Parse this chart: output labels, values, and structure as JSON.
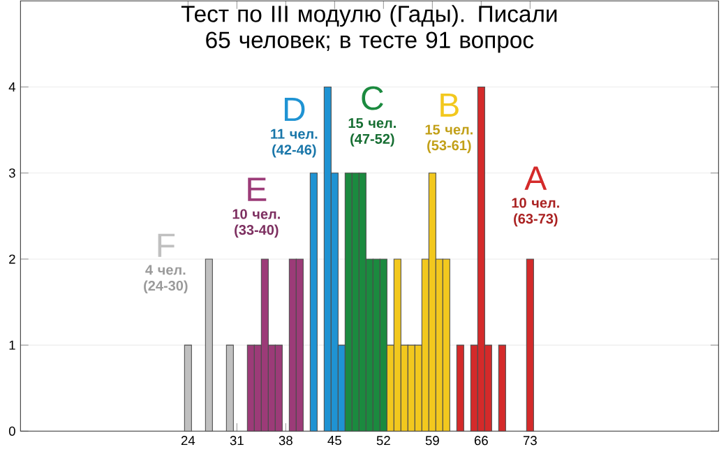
{
  "chart_data": {
    "type": "bar",
    "title": "Тест по III модулю (Гады). Писали 65 человек; в тесте 91 вопрос",
    "series": [
      {
        "name": "F",
        "color": "#c0c0c0",
        "x": [
          24,
          27,
          30
        ],
        "values": [
          1,
          2,
          1
        ]
      },
      {
        "name": "E",
        "color": "#9c3b78",
        "x": [
          33,
          34,
          35,
          36,
          37,
          39,
          40
        ],
        "values": [
          1,
          1,
          2,
          1,
          1,
          2,
          2
        ]
      },
      {
        "name": "D",
        "color": "#1f93d3",
        "x": [
          42,
          44,
          45,
          46
        ],
        "values": [
          3,
          4,
          3,
          1
        ]
      },
      {
        "name": "C",
        "color": "#1b8a3f",
        "x": [
          47,
          48,
          49,
          50,
          51,
          52
        ],
        "values": [
          3,
          3,
          3,
          2,
          2,
          2
        ]
      },
      {
        "name": "B",
        "color": "#f2c81e",
        "x": [
          53,
          54,
          55,
          56,
          57,
          58,
          59,
          60,
          61
        ],
        "values": [
          1,
          2,
          1,
          1,
          1,
          2,
          3,
          2,
          2
        ]
      },
      {
        "name": "A",
        "color": "#d42a2a",
        "x": [
          63,
          65,
          66,
          67,
          69,
          73
        ],
        "values": [
          1,
          1,
          4,
          1,
          1,
          2
        ]
      }
    ],
    "annotations": [
      "4 чел. (24-30)",
      "10 чел. (33-40)",
      "11 чел. (42-46)",
      "15 чел. (47-52)",
      "15 чел. (53-61)",
      "10 чел. (63-73)"
    ],
    "xlim": [
      0,
      100
    ],
    "ylim": [
      0,
      5
    ],
    "xticks": [
      24,
      31,
      38,
      45,
      52,
      59,
      66,
      73
    ],
    "yticks": [
      0,
      1,
      2,
      3,
      4
    ],
    "grid": "y"
  }
}
